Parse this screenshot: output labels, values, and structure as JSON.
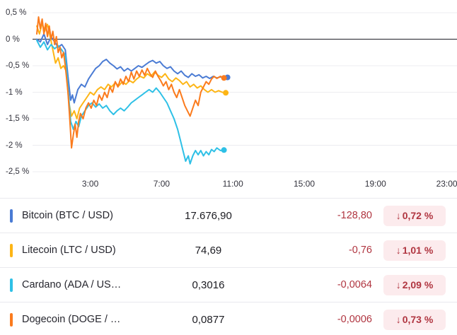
{
  "colors": {
    "negative": "#b03540",
    "badge_bg": "#fcebed",
    "grid": "#ececf0",
    "zero_line": "#3f3f46",
    "axis_text": "#32323c"
  },
  "chart_data": {
    "type": "line",
    "title": "",
    "xlabel": "",
    "ylabel": "",
    "grid": true,
    "legend": "none",
    "x_unit": "hours",
    "x_range": [
      0,
      23.5
    ],
    "y_range": [
      0.5,
      -2.5
    ],
    "y_ticks": [
      {
        "value": 0.5,
        "label": "0,5 %"
      },
      {
        "value": 0,
        "label": "0 %"
      },
      {
        "value": -0.5,
        "label": "-0,5 %"
      },
      {
        "value": -1,
        "label": "-1 %"
      },
      {
        "value": -1.5,
        "label": "-1,5 %"
      },
      {
        "value": -2,
        "label": "-2 %"
      },
      {
        "value": -2.5,
        "label": "-2,5 %"
      }
    ],
    "x_ticks": [
      {
        "value": 3,
        "label": "3:00"
      },
      {
        "value": 7,
        "label": "7:00"
      },
      {
        "value": 11,
        "label": "11:00"
      },
      {
        "value": 15,
        "label": "15:00"
      },
      {
        "value": 19,
        "label": "19:00"
      },
      {
        "value": 23,
        "label": "23:00"
      }
    ],
    "series": [
      {
        "name": "Bitcoin",
        "color": "#4a7bd4",
        "points": [
          [
            0,
            0
          ],
          [
            0.2,
            -0.05
          ],
          [
            0.4,
            0.1
          ],
          [
            0.6,
            -0.1
          ],
          [
            0.8,
            0.05
          ],
          [
            1,
            -0.05
          ],
          [
            1.2,
            -0.15
          ],
          [
            1.4,
            -0.1
          ],
          [
            1.6,
            -0.2
          ],
          [
            1.75,
            -0.7
          ],
          [
            1.9,
            -1.15
          ],
          [
            2,
            -1.05
          ],
          [
            2.1,
            -1.2
          ],
          [
            2.3,
            -0.95
          ],
          [
            2.5,
            -0.85
          ],
          [
            2.7,
            -0.9
          ],
          [
            2.9,
            -0.75
          ],
          [
            3.1,
            -0.65
          ],
          [
            3.3,
            -0.55
          ],
          [
            3.5,
            -0.5
          ],
          [
            3.7,
            -0.42
          ],
          [
            3.9,
            -0.38
          ],
          [
            4.1,
            -0.45
          ],
          [
            4.3,
            -0.5
          ],
          [
            4.5,
            -0.56
          ],
          [
            4.7,
            -0.52
          ],
          [
            4.9,
            -0.6
          ],
          [
            5.1,
            -0.55
          ],
          [
            5.3,
            -0.6
          ],
          [
            5.5,
            -0.55
          ],
          [
            5.7,
            -0.5
          ],
          [
            5.9,
            -0.53
          ],
          [
            6.1,
            -0.48
          ],
          [
            6.3,
            -0.43
          ],
          [
            6.5,
            -0.4
          ],
          [
            6.7,
            -0.45
          ],
          [
            6.9,
            -0.42
          ],
          [
            7.1,
            -0.5
          ],
          [
            7.3,
            -0.55
          ],
          [
            7.5,
            -0.52
          ],
          [
            7.7,
            -0.6
          ],
          [
            7.9,
            -0.65
          ],
          [
            8.1,
            -0.6
          ],
          [
            8.3,
            -0.68
          ],
          [
            8.5,
            -0.72
          ],
          [
            8.7,
            -0.65
          ],
          [
            8.9,
            -0.7
          ],
          [
            9.1,
            -0.67
          ],
          [
            9.3,
            -0.73
          ],
          [
            9.5,
            -0.7
          ],
          [
            9.7,
            -0.74
          ],
          [
            9.9,
            -0.7
          ],
          [
            10.1,
            -0.73
          ],
          [
            10.3,
            -0.71
          ],
          [
            10.5,
            -0.72
          ],
          [
            10.7,
            -0.72
          ]
        ]
      },
      {
        "name": "Litecoin",
        "color": "#fdb515",
        "points": [
          [
            0,
            0.25
          ],
          [
            0.15,
            0.1
          ],
          [
            0.3,
            0.3
          ],
          [
            0.45,
            0.15
          ],
          [
            0.6,
            0.28
          ],
          [
            0.75,
            0.05
          ],
          [
            0.9,
            -0.2
          ],
          [
            1.05,
            -0.45
          ],
          [
            1.2,
            -0.35
          ],
          [
            1.35,
            -0.55
          ],
          [
            1.5,
            -0.5
          ],
          [
            1.65,
            -0.6
          ],
          [
            1.8,
            -1.2
          ],
          [
            1.95,
            -1.45
          ],
          [
            2.1,
            -1.35
          ],
          [
            2.25,
            -1.5
          ],
          [
            2.4,
            -1.3
          ],
          [
            2.6,
            -1.2
          ],
          [
            2.8,
            -1.1
          ],
          [
            3,
            -1
          ],
          [
            3.2,
            -1.05
          ],
          [
            3.4,
            -0.95
          ],
          [
            3.6,
            -0.9
          ],
          [
            3.8,
            -0.95
          ],
          [
            4,
            -0.85
          ],
          [
            4.2,
            -0.9
          ],
          [
            4.4,
            -0.82
          ],
          [
            4.6,
            -0.88
          ],
          [
            4.8,
            -0.8
          ],
          [
            5,
            -0.85
          ],
          [
            5.2,
            -0.78
          ],
          [
            5.4,
            -0.82
          ],
          [
            5.6,
            -0.75
          ],
          [
            5.8,
            -0.7
          ],
          [
            6,
            -0.73
          ],
          [
            6.2,
            -0.65
          ],
          [
            6.4,
            -0.7
          ],
          [
            6.6,
            -0.62
          ],
          [
            6.8,
            -0.68
          ],
          [
            7,
            -0.72
          ],
          [
            7.2,
            -0.65
          ],
          [
            7.4,
            -0.75
          ],
          [
            7.6,
            -0.8
          ],
          [
            7.8,
            -0.73
          ],
          [
            8,
            -0.78
          ],
          [
            8.2,
            -0.85
          ],
          [
            8.4,
            -0.8
          ],
          [
            8.6,
            -0.9
          ],
          [
            8.8,
            -0.85
          ],
          [
            9,
            -0.92
          ],
          [
            9.2,
            -0.88
          ],
          [
            9.4,
            -0.95
          ],
          [
            9.6,
            -1
          ],
          [
            9.8,
            -0.95
          ],
          [
            10,
            -1
          ],
          [
            10.2,
            -0.97
          ],
          [
            10.4,
            -1
          ],
          [
            10.6,
            -1.01
          ]
        ]
      },
      {
        "name": "Cardano",
        "color": "#2ec0e6",
        "points": [
          [
            0,
            -0.02
          ],
          [
            0.2,
            -0.15
          ],
          [
            0.4,
            -0.05
          ],
          [
            0.6,
            -0.2
          ],
          [
            0.8,
            -0.1
          ],
          [
            1,
            -0.18
          ],
          [
            1.2,
            -0.12
          ],
          [
            1.4,
            -0.2
          ],
          [
            1.6,
            -0.3
          ],
          [
            1.75,
            -0.9
          ],
          [
            1.9,
            -1.55
          ],
          [
            2.05,
            -1.7
          ],
          [
            2.2,
            -1.55
          ],
          [
            2.35,
            -1.65
          ],
          [
            2.5,
            -1.45
          ],
          [
            2.7,
            -1.35
          ],
          [
            2.9,
            -1.25
          ],
          [
            3.1,
            -1.2
          ],
          [
            3.3,
            -1.28
          ],
          [
            3.5,
            -1.22
          ],
          [
            3.7,
            -1.3
          ],
          [
            3.9,
            -1.25
          ],
          [
            4.1,
            -1.35
          ],
          [
            4.3,
            -1.42
          ],
          [
            4.5,
            -1.35
          ],
          [
            4.7,
            -1.3
          ],
          [
            4.9,
            -1.35
          ],
          [
            5.1,
            -1.28
          ],
          [
            5.3,
            -1.2
          ],
          [
            5.5,
            -1.15
          ],
          [
            5.7,
            -1.1
          ],
          [
            5.9,
            -1.05
          ],
          [
            6.1,
            -1
          ],
          [
            6.3,
            -0.95
          ],
          [
            6.5,
            -1
          ],
          [
            6.7,
            -0.92
          ],
          [
            6.9,
            -1
          ],
          [
            7.1,
            -1.1
          ],
          [
            7.3,
            -1.2
          ],
          [
            7.5,
            -1.35
          ],
          [
            7.7,
            -1.5
          ],
          [
            7.9,
            -1.7
          ],
          [
            8.05,
            -1.9
          ],
          [
            8.2,
            -2.1
          ],
          [
            8.35,
            -2.3
          ],
          [
            8.5,
            -2.2
          ],
          [
            8.6,
            -2.35
          ],
          [
            8.75,
            -2.2
          ],
          [
            8.9,
            -2.1
          ],
          [
            9.05,
            -2.18
          ],
          [
            9.2,
            -2.1
          ],
          [
            9.35,
            -2.2
          ],
          [
            9.5,
            -2.12
          ],
          [
            9.65,
            -2.18
          ],
          [
            9.8,
            -2.08
          ],
          [
            9.95,
            -2.12
          ],
          [
            10.1,
            -2.05
          ],
          [
            10.3,
            -2.1
          ],
          [
            10.5,
            -2.09
          ]
        ]
      },
      {
        "name": "Dogecoin",
        "color": "#fb7b1d",
        "points": [
          [
            0,
            0.1
          ],
          [
            0.1,
            0.42
          ],
          [
            0.2,
            0.2
          ],
          [
            0.3,
            0.38
          ],
          [
            0.4,
            0.1
          ],
          [
            0.5,
            0.3
          ],
          [
            0.6,
            0.05
          ],
          [
            0.7,
            0.25
          ],
          [
            0.8,
            0
          ],
          [
            0.9,
            0.15
          ],
          [
            1,
            -0.1
          ],
          [
            1.1,
            0.05
          ],
          [
            1.2,
            -0.25
          ],
          [
            1.3,
            -0.15
          ],
          [
            1.4,
            -0.35
          ],
          [
            1.5,
            -0.25
          ],
          [
            1.6,
            -0.5
          ],
          [
            1.75,
            -1
          ],
          [
            1.85,
            -1.5
          ],
          [
            1.95,
            -2.05
          ],
          [
            2.05,
            -1.8
          ],
          [
            2.15,
            -1.6
          ],
          [
            2.25,
            -1.85
          ],
          [
            2.35,
            -1.55
          ],
          [
            2.45,
            -1.4
          ],
          [
            2.6,
            -1.5
          ],
          [
            2.75,
            -1.3
          ],
          [
            2.9,
            -1.2
          ],
          [
            3.05,
            -1.3
          ],
          [
            3.2,
            -1.15
          ],
          [
            3.35,
            -1.25
          ],
          [
            3.5,
            -1.05
          ],
          [
            3.65,
            -1.15
          ],
          [
            3.8,
            -1
          ],
          [
            3.95,
            -1.1
          ],
          [
            4.1,
            -0.9
          ],
          [
            4.25,
            -1
          ],
          [
            4.4,
            -0.8
          ],
          [
            4.55,
            -0.9
          ],
          [
            4.7,
            -0.75
          ],
          [
            4.85,
            -0.85
          ],
          [
            5,
            -0.7
          ],
          [
            5.15,
            -0.8
          ],
          [
            5.3,
            -0.62
          ],
          [
            5.45,
            -0.75
          ],
          [
            5.6,
            -0.6
          ],
          [
            5.75,
            -0.7
          ],
          [
            5.9,
            -0.58
          ],
          [
            6.05,
            -0.68
          ],
          [
            6.2,
            -0.55
          ],
          [
            6.35,
            -0.65
          ],
          [
            6.5,
            -0.72
          ],
          [
            6.65,
            -0.6
          ],
          [
            6.8,
            -0.7
          ],
          [
            6.95,
            -0.78
          ],
          [
            7.1,
            -0.88
          ],
          [
            7.25,
            -0.8
          ],
          [
            7.4,
            -0.95
          ],
          [
            7.55,
            -0.85
          ],
          [
            7.7,
            -1
          ],
          [
            7.85,
            -1.1
          ],
          [
            8,
            -0.95
          ],
          [
            8.15,
            -1.1
          ],
          [
            8.3,
            -1.25
          ],
          [
            8.45,
            -1.35
          ],
          [
            8.6,
            -1.45
          ],
          [
            8.75,
            -1.3
          ],
          [
            8.9,
            -1.15
          ],
          [
            9.05,
            -1.25
          ],
          [
            9.2,
            -1
          ],
          [
            9.35,
            -0.9
          ],
          [
            9.5,
            -0.8
          ],
          [
            9.65,
            -0.85
          ],
          [
            9.8,
            -0.75
          ],
          [
            9.95,
            -0.7
          ],
          [
            10.1,
            -0.74
          ],
          [
            10.3,
            -0.7
          ],
          [
            10.5,
            -0.73
          ]
        ]
      }
    ]
  },
  "table": {
    "down_arrow": "↓",
    "rows": [
      {
        "name": "Bitcoin (BTC / USD)",
        "color": "#4a7bd4",
        "price": "17.676,90",
        "change": "-128,80",
        "change_pct": "0,72 %",
        "direction": "down"
      },
      {
        "name": "Litecoin (LTC / USD)",
        "color": "#fdb515",
        "price": "74,69",
        "change": "-0,76",
        "change_pct": "1,01 %",
        "direction": "down"
      },
      {
        "name": "Cardano (ADA / US…",
        "color": "#2ec0e6",
        "price": "0,3016",
        "change": "-0,0064",
        "change_pct": "2,09 %",
        "direction": "down"
      },
      {
        "name": "Dogecoin (DOGE / …",
        "color": "#fb7b1d",
        "price": "0,0877",
        "change": "-0,0006",
        "change_pct": "0,73 %",
        "direction": "down"
      }
    ]
  }
}
